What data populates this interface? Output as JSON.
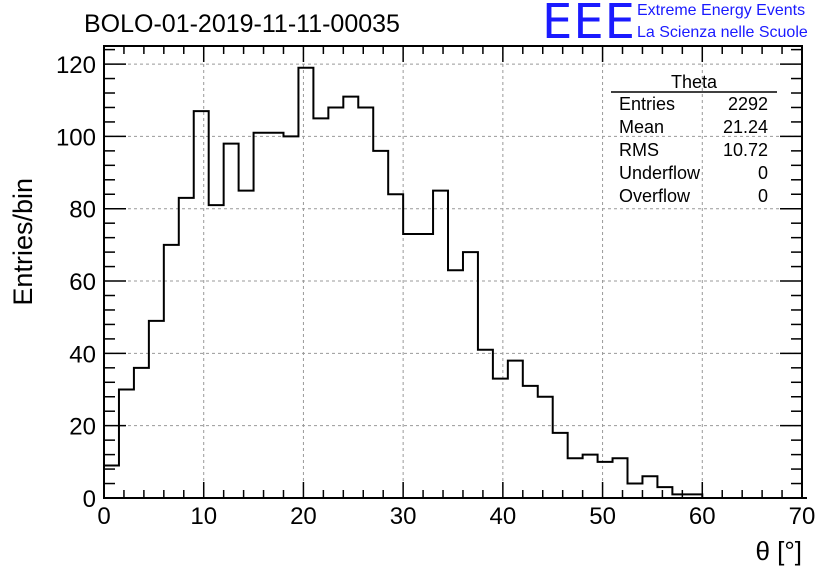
{
  "chart_data": {
    "type": "bar",
    "title": "BOLO-01-2019-11-11-00035",
    "xlabel": "θ [°]",
    "ylabel": "Entries/bin",
    "xlim": [
      0,
      70
    ],
    "ylim": [
      0,
      125
    ],
    "xticks": [
      "0",
      "10",
      "20",
      "30",
      "40",
      "50",
      "60",
      "70"
    ],
    "yticks": [
      "0",
      "20",
      "40",
      "60",
      "80",
      "100",
      "120"
    ],
    "grid": true,
    "bin_width": 1.5,
    "bin_start": 0,
    "values": [
      9,
      30,
      36,
      49,
      70,
      83,
      107,
      81,
      98,
      85,
      101,
      101,
      100,
      119,
      105,
      108,
      111,
      108,
      96,
      84,
      73,
      73,
      85,
      63,
      68,
      41,
      33,
      38,
      31,
      28,
      18,
      11,
      12,
      10,
      11,
      4,
      6,
      3,
      1,
      1,
      0,
      0,
      0,
      0,
      0,
      0,
      0
    ]
  },
  "stats": {
    "title": "Theta",
    "rows": [
      {
        "label": "Entries",
        "value": "2292"
      },
      {
        "label": "Mean",
        "value": "21.24"
      },
      {
        "label": "RMS",
        "value": "10.72"
      },
      {
        "label": "Underflow",
        "value": "0"
      },
      {
        "label": "Overflow",
        "value": "0"
      }
    ]
  },
  "logo": {
    "mark": "EEE",
    "line1": "Extreme Energy Events",
    "line2": "La Scienza nelle Scuole",
    "color": "#1a1aff"
  }
}
